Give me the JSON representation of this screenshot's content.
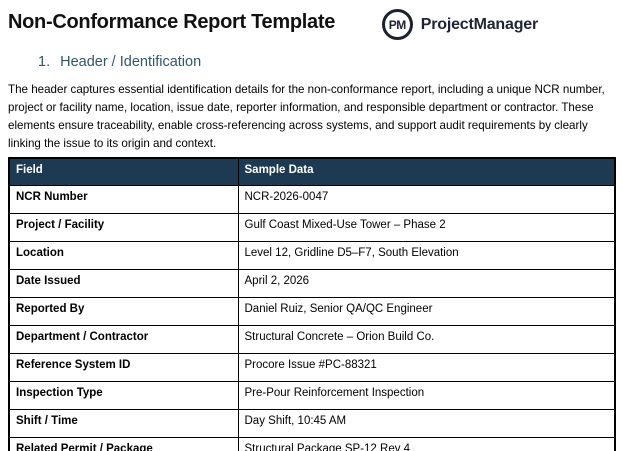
{
  "page": {
    "title": "Non-Conformance Report Template"
  },
  "logo": {
    "monogram": "PM",
    "brand": "ProjectManager"
  },
  "section": {
    "number": "1.",
    "title": "Header / Identification",
    "description": "The header captures essential identification details for the non-conformance report, including a unique NCR number, project or facility name, location, issue date, reporter information, and responsible department or contractor. These elements ensure traceability, enable cross-referencing across systems, and support audit requirements by clearly linking the issue to its origin and context."
  },
  "table": {
    "headers": [
      "Field",
      "Sample Data"
    ],
    "rows": [
      {
        "field": "NCR Number",
        "sample": "NCR-2026-0047"
      },
      {
        "field": "Project / Facility",
        "sample": "Gulf Coast Mixed-Use Tower – Phase 2"
      },
      {
        "field": "Location",
        "sample": "Level 12, Gridline D5–F7, South Elevation"
      },
      {
        "field": "Date Issued",
        "sample": "April 2, 2026"
      },
      {
        "field": "Reported By",
        "sample": "Daniel Ruiz, Senior QA/QC Engineer"
      },
      {
        "field": "Department / Contractor",
        "sample": "Structural Concrete – Orion Build Co."
      },
      {
        "field": "Reference System ID",
        "sample": "Procore Issue #PC-88321"
      },
      {
        "field": "Inspection Type",
        "sample": "Pre-Pour Reinforcement Inspection"
      },
      {
        "field": "Shift / Time",
        "sample": "Day Shift, 10:45 AM"
      },
      {
        "field": "Related Permit / Package",
        "sample": "Structural Package SP-12 Rev 4"
      }
    ]
  },
  "colors": {
    "table_header_bg": "#1e3a52",
    "section_heading_text": "#2e566d",
    "logo_navy": "#1b2130",
    "table_border": "#000000",
    "header_text": "#ffffff"
  }
}
